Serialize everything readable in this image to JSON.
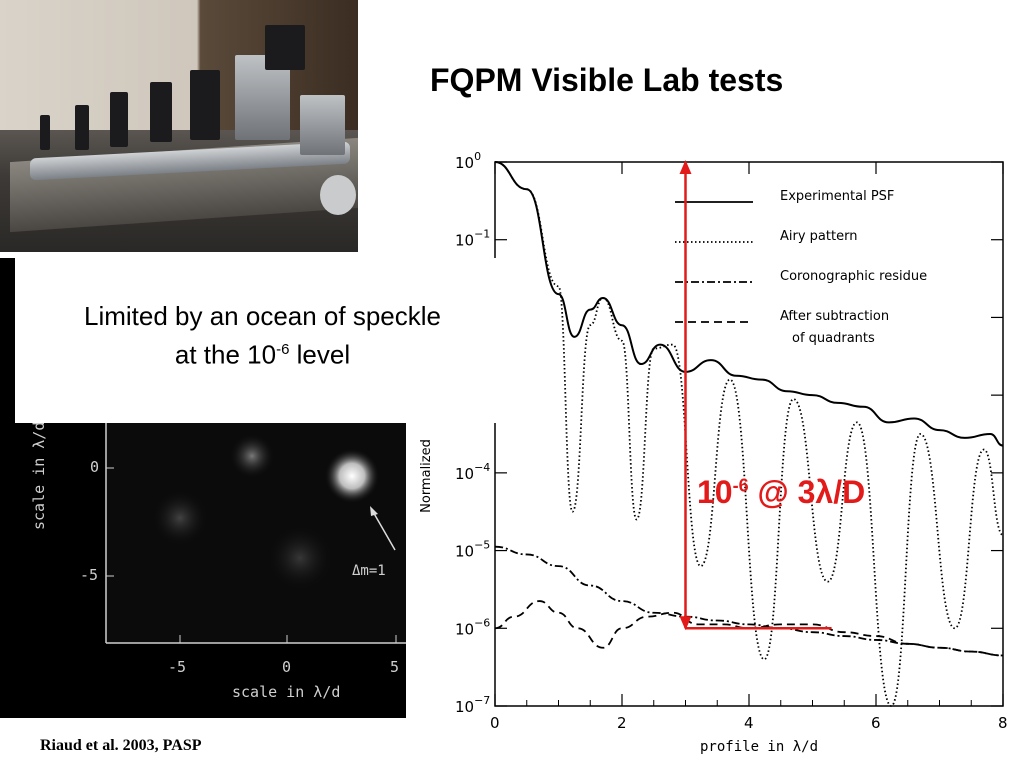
{
  "slide": {
    "title": "FQPM Visible Lab tests",
    "speckle_line1": "Limited by an ocean of speckle",
    "speckle_line2_pre": "at the 10",
    "speckle_line2_sup": "-6",
    "speckle_line2_post": " level",
    "citation": "Riaud et al. 2003, PASP",
    "red_note_base": "10",
    "red_note_sup": "-6",
    "red_note_post": " @ 3λ/D"
  },
  "photo": {
    "description_icon": "optical-bench-photo-icon"
  },
  "speckle_image": {
    "y_label": "scale in λ/d",
    "x_label": "scale in λ/d",
    "x_ticks": [
      "-5",
      "0",
      "5"
    ],
    "y_ticks": [
      "0",
      "-5"
    ],
    "annotation": "Δm=1"
  },
  "chart_data": {
    "type": "line",
    "xlabel": "profile in λ/d",
    "ylabel": "Normalized",
    "xlim": [
      0,
      8
    ],
    "ylim_log10": [
      -7,
      0
    ],
    "x_ticks": [
      "0",
      "2",
      "4",
      "6",
      "8"
    ],
    "y_ticks": [
      {
        "base": "10",
        "exp": "0"
      },
      {
        "base": "10",
        "exp": "−1"
      },
      {
        "base": "10",
        "exp": "−4"
      },
      {
        "base": "10",
        "exp": "−5"
      },
      {
        "base": "10",
        "exp": "−6"
      },
      {
        "base": "10",
        "exp": "−7"
      }
    ],
    "legend": [
      {
        "name": "Experimental PSF",
        "style": "solid"
      },
      {
        "name": "Airy pattern",
        "style": "dotted"
      },
      {
        "name": "Coronographic residue",
        "style": "dashdot"
      },
      {
        "name": "After subtraction of quadrants",
        "style": "dashed"
      }
    ],
    "series": [
      {
        "name": "Experimental PSF",
        "x": [
          0,
          0.5,
          1.0,
          1.25,
          1.5,
          1.7,
          2.0,
          2.3,
          2.6,
          3.0,
          3.4,
          3.8,
          4.2,
          4.6,
          5.0,
          5.4,
          5.8,
          6.2,
          6.6,
          7.0,
          7.4,
          7.8,
          8.0
        ],
        "log10_y": [
          0,
          -0.35,
          -1.7,
          -2.25,
          -1.9,
          -1.75,
          -2.1,
          -2.6,
          -2.35,
          -2.7,
          -2.55,
          -2.75,
          -2.8,
          -2.95,
          -3.0,
          -3.1,
          -3.15,
          -3.35,
          -3.3,
          -3.45,
          -3.55,
          -3.5,
          -3.65
        ]
      },
      {
        "name": "Airy pattern",
        "x": [
          0,
          0.5,
          1.0,
          1.22,
          1.5,
          1.7,
          2.0,
          2.23,
          2.5,
          2.8,
          3.24,
          3.7,
          4.24,
          4.7,
          5.24,
          5.7,
          6.24,
          6.7,
          7.24,
          7.7,
          8.0
        ],
        "log10_y": [
          0,
          -0.35,
          -1.6,
          -4.5,
          -2.1,
          -1.75,
          -2.3,
          -4.6,
          -2.4,
          -2.35,
          -5.2,
          -2.8,
          -6.4,
          -3.05,
          -5.4,
          -3.35,
          -7.0,
          -3.5,
          -6.0,
          -3.7,
          -4.8
        ]
      },
      {
        "name": "Coronographic residue",
        "x": [
          0,
          0.5,
          1.0,
          1.5,
          2.0,
          2.5,
          3.0,
          3.5,
          4.0,
          4.5,
          5.0,
          5.5,
          6.0,
          6.5,
          7.0,
          7.5,
          8.0
        ],
        "log10_y": [
          -4.95,
          -5.05,
          -5.2,
          -5.45,
          -5.65,
          -5.8,
          -5.85,
          -5.9,
          -5.95,
          -6.0,
          -6.05,
          -6.1,
          -6.15,
          -6.2,
          -6.25,
          -6.3,
          -6.35
        ]
      },
      {
        "name": "After subtraction of quadrants",
        "x": [
          0,
          0.3,
          0.7,
          1.0,
          1.3,
          1.7,
          2.0,
          2.4,
          2.8,
          3.2,
          3.6,
          4.0,
          4.5,
          5.0,
          5.5,
          6.0,
          6.5,
          7.0,
          7.5,
          8.0
        ],
        "log10_y": [
          -6.0,
          -5.85,
          -5.65,
          -5.8,
          -6.0,
          -6.25,
          -6.0,
          -5.85,
          -5.8,
          -5.95,
          -5.95,
          -6.0,
          -5.95,
          -5.95,
          -6.05,
          -6.1,
          -6.2,
          -6.25,
          -6.3,
          -6.35
        ]
      }
    ],
    "marker": {
      "x": 3,
      "from_log10": 0,
      "to_log10": -6,
      "hline_to_x": 5.3,
      "color": "#e21a1a"
    }
  }
}
